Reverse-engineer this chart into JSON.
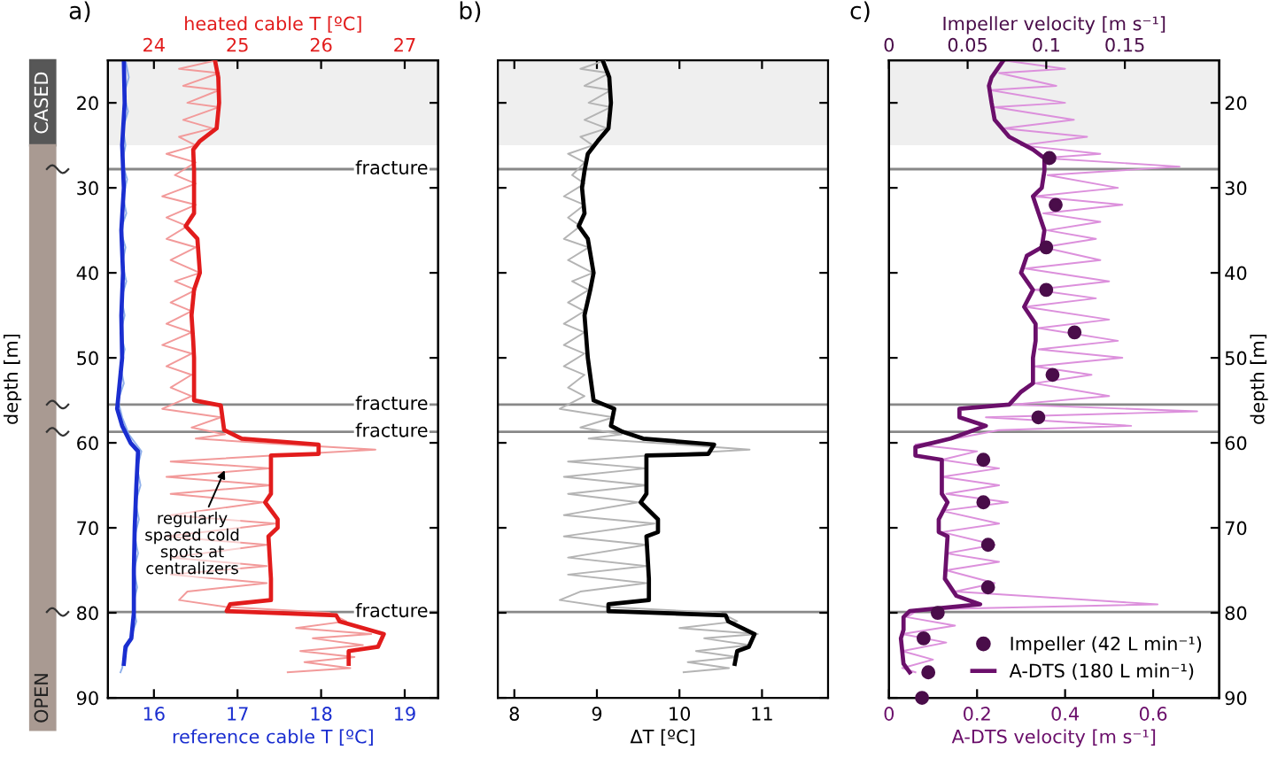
{
  "chart_data": [
    {
      "type": "line",
      "title": "a)",
      "xlabel": "reference cable T [ºC]",
      "x2label": "heated cable T [ºC]",
      "ylabel": "depth [m]",
      "xlim": [
        15.45,
        19.4
      ],
      "xticks": [
        16,
        17,
        18,
        19
      ],
      "x2lim": [
        23.45,
        27.4
      ],
      "x2ticks": [
        24,
        25,
        26,
        27
      ],
      "ylim": [
        90,
        15
      ],
      "yticks": [
        20,
        30,
        40,
        50,
        60,
        70,
        80,
        90
      ],
      "grid": false,
      "bands": [
        {
          "axis": "y",
          "from": 15,
          "to": 25,
          "color": "#efefef"
        }
      ],
      "ref_lines": [
        {
          "axis": "y",
          "value": 27.8,
          "label": "fracture",
          "color": "#888888"
        },
        {
          "axis": "y",
          "value": 55.5,
          "label": "fracture",
          "color": "#888888"
        },
        {
          "axis": "y",
          "value": 58.7,
          "label": "fracture",
          "color": "#888888"
        },
        {
          "axis": "y",
          "value": 79.9,
          "label": "fracture",
          "color": "#888888"
        }
      ],
      "annotations": [
        "CASED",
        "OPEN",
        {
          "text": "regularly\nspaced cold\nspots at\ncentralizers",
          "x": 16.87,
          "y": 62.7
        }
      ],
      "series": [
        {
          "type": "line",
          "color": "#8fb0ea",
          "x": [
            15.66,
            15.7,
            15.64,
            15.69,
            15.63,
            15.66,
            15.62,
            15.68,
            15.63,
            15.67,
            15.6,
            15.66,
            15.62,
            15.67,
            15.61,
            15.65,
            15.6,
            15.65,
            15.6,
            15.64,
            15.57,
            15.62,
            15.7,
            15.85,
            15.8,
            15.84,
            15.78,
            15.82,
            15.77,
            15.81,
            15.76,
            15.8,
            15.75,
            15.79,
            15.72,
            15.65,
            15.62,
            15.6
          ],
          "values": [
            15,
            17,
            19,
            21,
            23,
            25,
            27,
            29,
            31,
            33,
            35,
            37,
            39,
            41,
            43,
            45,
            47,
            49,
            51,
            53,
            55,
            57,
            59,
            61,
            63,
            65,
            67,
            69,
            71,
            73,
            75,
            77,
            79,
            81,
            83,
            85,
            86.5,
            87
          ]
        },
        {
          "type": "line",
          "color": "#1a2ed0",
          "x": [
            15.64,
            15.65,
            15.62,
            15.64,
            15.61,
            15.63,
            15.61,
            15.62,
            15.57,
            15.56,
            15.62,
            15.72,
            15.81,
            15.79,
            15.77,
            15.76,
            15.76,
            15.73,
            15.66,
            15.64
          ],
          "values": [
            15,
            20,
            25,
            30,
            35,
            40,
            45,
            50,
            55,
            56,
            58,
            60,
            61,
            65,
            70,
            75,
            80,
            83,
            84,
            86
          ]
        },
        {
          "type": "line",
          "axis": "x2",
          "color": "#f29a9a",
          "x": [
            24.75,
            24.3,
            24.78,
            24.35,
            24.78,
            24.4,
            24.78,
            24.35,
            24.7,
            24.3,
            24.5,
            24.15,
            24.5,
            24.25,
            24.5,
            24.1,
            24.5,
            24.15,
            24.4,
            24.15,
            24.5,
            24.2,
            24.55,
            24.25,
            24.5,
            24.2,
            24.45,
            24.15,
            24.45,
            24.1,
            24.45,
            24.15,
            24.45,
            24.2,
            24.45,
            24.1,
            24.8,
            24.45,
            24.85,
            24.5,
            25.6,
            26.65,
            25.4,
            24.2,
            25.4,
            24.15,
            25.4,
            24.2,
            25.3,
            24.2,
            25.45,
            24.15,
            25.35,
            24.2,
            25.35,
            24.2,
            25.35,
            24.4,
            24.3,
            24.85,
            26.1,
            26.3,
            25.7,
            26.6,
            25.9,
            26.5,
            25.75,
            26.4,
            25.8,
            26.35,
            25.6
          ],
          "values": [
            15,
            16,
            16.5,
            18,
            18.5,
            20,
            20.5,
            22,
            23,
            24,
            25,
            26,
            27,
            28.5,
            29.5,
            31,
            32,
            33.5,
            34.5,
            36,
            37,
            38.5,
            40,
            41,
            42,
            43.5,
            44.5,
            46,
            47,
            48.5,
            49.5,
            51,
            52,
            53.5,
            54.5,
            56,
            57,
            58.2,
            59,
            59.5,
            60.2,
            60.8,
            61.5,
            62.2,
            63,
            64,
            65,
            66,
            67,
            68.5,
            69.5,
            71,
            72,
            73.5,
            74.5,
            75.5,
            76.5,
            77.5,
            78.5,
            79.3,
            80,
            81,
            81.8,
            82.5,
            83,
            83.8,
            84.5,
            85.2,
            85.8,
            86.5,
            87
          ]
        },
        {
          "type": "line",
          "axis": "x2",
          "color": "#e21c1c",
          "x": [
            24.73,
            24.77,
            24.78,
            24.75,
            24.55,
            24.47,
            24.48,
            24.48,
            24.48,
            24.38,
            24.52,
            24.55,
            24.48,
            24.45,
            24.47,
            24.48,
            24.48,
            24.8,
            24.84,
            25.05,
            25.97,
            25.97,
            25.4,
            25.4,
            25.33,
            25.48,
            25.48,
            25.37,
            25.4,
            25.4,
            24.91,
            24.87,
            26.18,
            26.22,
            26.75,
            26.68,
            26.33,
            26.33
          ],
          "values": [
            15,
            17,
            20,
            23,
            24.5,
            25.5,
            28,
            30,
            33,
            34.5,
            36,
            40,
            42,
            45,
            48,
            50,
            55,
            55.6,
            58.5,
            59.5,
            60.2,
            61.3,
            61.5,
            66,
            67,
            69,
            70,
            71,
            76,
            78.5,
            79,
            79.8,
            80.3,
            81,
            82.5,
            84,
            84.5,
            86
          ]
        }
      ]
    },
    {
      "type": "line",
      "title": "b)",
      "xlabel": "ΔT [ºC]",
      "xlim": [
        7.8,
        11.8
      ],
      "xticks": [
        8,
        9,
        10,
        11
      ],
      "ylim": [
        90,
        15
      ],
      "yticks": [
        20,
        30,
        40,
        50,
        60,
        70,
        80,
        90
      ],
      "tick_labels": "x",
      "grid": false,
      "bands": [
        {
          "axis": "y",
          "from": 15,
          "to": 25,
          "color": "#efefef"
        }
      ],
      "ref_lines": [
        {
          "axis": "y",
          "value": 27.8,
          "color": "#888888"
        },
        {
          "axis": "y",
          "value": 55.5,
          "color": "#888888"
        },
        {
          "axis": "y",
          "value": 58.7,
          "color": "#888888"
        },
        {
          "axis": "y",
          "value": 79.9,
          "color": "#888888"
        }
      ],
      "series": [
        {
          "type": "line",
          "color": "#b4b4b4",
          "x": [
            9.1,
            8.8,
            9.15,
            8.85,
            9.17,
            8.9,
            9.17,
            8.85,
            9.12,
            8.8,
            8.95,
            8.65,
            8.85,
            8.7,
            8.85,
            8.6,
            8.85,
            8.65,
            8.8,
            8.6,
            8.9,
            8.65,
            8.95,
            8.7,
            8.9,
            8.65,
            8.85,
            8.6,
            8.85,
            8.6,
            8.85,
            8.6,
            8.85,
            8.65,
            8.85,
            8.55,
            9.2,
            8.8,
            9.3,
            8.9,
            10.0,
            10.85,
            9.6,
            8.65,
            9.6,
            8.6,
            9.6,
            8.65,
            9.5,
            8.6,
            9.7,
            8.6,
            9.6,
            8.65,
            9.6,
            8.65,
            9.6,
            8.8,
            8.55,
            9.1,
            10.5,
            10.7,
            10.0,
            10.95,
            10.3,
            10.85,
            10.2,
            10.7,
            10.1,
            10.6,
            10.05
          ],
          "values": [
            15,
            16,
            16.5,
            18,
            18.5,
            20,
            20.5,
            22,
            23,
            24,
            25,
            26,
            27,
            28.5,
            29.5,
            31,
            32,
            33.5,
            34.5,
            36,
            37,
            38.5,
            40,
            41,
            42,
            43.5,
            44.5,
            46,
            47,
            48.5,
            49.5,
            51,
            52,
            53.5,
            54.5,
            56,
            57,
            58.2,
            59,
            59.5,
            60.2,
            60.8,
            61.5,
            62.2,
            63,
            64,
            65,
            66,
            67,
            68.5,
            69.5,
            71,
            72,
            73.5,
            74.5,
            75.5,
            76.5,
            77.5,
            78.5,
            79.3,
            80,
            81,
            81.8,
            82.5,
            83,
            83.8,
            84.5,
            85.2,
            85.8,
            86.5,
            87
          ]
        },
        {
          "type": "line",
          "color": "#000000",
          "x": [
            9.07,
            9.15,
            9.17,
            9.14,
            9.01,
            8.89,
            8.85,
            8.82,
            8.85,
            8.78,
            8.89,
            8.96,
            8.92,
            8.85,
            8.89,
            8.96,
            9.21,
            9.17,
            9.31,
            9.56,
            10.42,
            10.35,
            9.6,
            9.6,
            9.53,
            9.74,
            9.74,
            9.6,
            9.63,
            9.63,
            9.14,
            9.14,
            10.56,
            10.59,
            10.91,
            10.84,
            10.7,
            10.67
          ],
          "values": [
            15,
            17,
            20,
            23,
            24.5,
            26,
            28,
            30,
            33,
            34.5,
            36,
            40,
            42,
            45,
            50,
            55,
            56,
            58,
            58.7,
            59.5,
            60.2,
            61.3,
            61.5,
            66,
            67,
            69,
            70.5,
            71,
            76,
            78.5,
            79,
            79.8,
            80.3,
            81,
            82.5,
            84,
            84.5,
            86
          ]
        }
      ]
    },
    {
      "type": "line",
      "xlabel": "A-DTS velocity [m s⁻¹]",
      "x2label": "Impeller velocity [m s⁻¹]",
      "title": "c)",
      "ylabel": "depth [m]",
      "xlim": [
        0,
        0.75
      ],
      "xticks": [
        0,
        0.2,
        0.4,
        0.6
      ],
      "x2lim": [
        0,
        0.21
      ],
      "x2ticks": [
        0,
        0.05,
        0.1,
        0.15
      ],
      "ylim": [
        90,
        15
      ],
      "yticks": [
        20,
        30,
        40,
        50,
        60,
        70,
        80,
        90
      ],
      "grid": false,
      "legend": "bottom right",
      "bands": [
        {
          "axis": "y",
          "from": 15,
          "to": 25,
          "color": "#efefef"
        }
      ],
      "ref_lines": [
        {
          "axis": "y",
          "value": 27.8,
          "color": "#888888"
        },
        {
          "axis": "y",
          "value": 55.5,
          "color": "#888888"
        },
        {
          "axis": "y",
          "value": 58.7,
          "color": "#888888"
        },
        {
          "axis": "y",
          "value": 79.9,
          "color": "#888888"
        }
      ],
      "series": [
        {
          "type": "scatter",
          "axis": "x2",
          "marker": "circle",
          "name": "Impeller (42 L min⁻¹)",
          "color": "#4a0d4a",
          "x": [
            0.102,
            0.106,
            0.1,
            0.1,
            0.118,
            0.104,
            0.095,
            0.06,
            0.06,
            0.063,
            0.063,
            0.031,
            0.022,
            0.025,
            0.021
          ],
          "values": [
            26.5,
            32,
            37,
            42,
            47,
            52,
            57,
            62,
            67,
            72,
            77,
            80,
            83,
            87,
            90
          ]
        },
        {
          "type": "line",
          "color": "#dc90dc",
          "x": [
            0.26,
            0.4,
            0.25,
            0.38,
            0.23,
            0.4,
            0.24,
            0.42,
            0.26,
            0.45,
            0.3,
            0.48,
            0.35,
            0.66,
            0.36,
            0.52,
            0.33,
            0.53,
            0.35,
            0.48,
            0.36,
            0.47,
            0.35,
            0.48,
            0.31,
            0.5,
            0.33,
            0.47,
            0.31,
            0.5,
            0.34,
            0.52,
            0.34,
            0.53,
            0.33,
            0.46,
            0.33,
            0.5,
            0.28,
            0.7,
            0.22,
            0.55,
            0.25,
            0.15,
            0.06,
            0.2,
            0.12,
            0.25,
            0.12,
            0.25,
            0.13,
            0.27,
            0.12,
            0.25,
            0.12,
            0.24,
            0.13,
            0.25,
            0.13,
            0.24,
            0.15,
            0.61,
            0.07,
            0.04,
            0.15,
            0.03,
            0.13,
            0.03,
            0.1,
            0.03,
            0.06
          ],
          "values": [
            15,
            16,
            16.5,
            18,
            18.5,
            20,
            20.5,
            22,
            23,
            24,
            25,
            26,
            26.5,
            27.5,
            28.5,
            30,
            31,
            32,
            33,
            34,
            35,
            36,
            37,
            38.5,
            39.5,
            41,
            42,
            43,
            44,
            45.5,
            46.5,
            48,
            49,
            50,
            51,
            52,
            53,
            54.5,
            55.5,
            56.3,
            57,
            58,
            58.5,
            59.5,
            60.2,
            61,
            62,
            63,
            64,
            65,
            66,
            67,
            68,
            69.5,
            70.5,
            72,
            73,
            74,
            75,
            76.5,
            77.5,
            79,
            79.6,
            80.5,
            81.5,
            82.5,
            83.5,
            84.5,
            85.5,
            86.5,
            87
          ]
        },
        {
          "type": "line",
          "name": "A-DTS (180 L min⁻¹)",
          "color": "#6b0f6b",
          "x": [
            0.26,
            0.233,
            0.227,
            0.233,
            0.24,
            0.273,
            0.327,
            0.353,
            0.353,
            0.347,
            0.327,
            0.34,
            0.353,
            0.347,
            0.313,
            0.3,
            0.327,
            0.307,
            0.333,
            0.333,
            0.327,
            0.327,
            0.3,
            0.273,
            0.16,
            0.16,
            0.22,
            0.14,
            0.06,
            0.06,
            0.12,
            0.12,
            0.133,
            0.113,
            0.113,
            0.133,
            0.127,
            0.153,
            0.207,
            0.047,
            0.033,
            0.033,
            0.027,
            0.033,
            0.047
          ],
          "values": [
            15,
            17,
            18,
            20,
            22,
            24,
            25.5,
            26.5,
            28,
            30,
            31,
            33,
            35,
            37,
            38,
            40,
            42,
            44,
            46,
            48,
            50,
            53,
            54,
            55.5,
            56,
            57,
            58,
            59.5,
            60.5,
            61.5,
            62,
            66,
            67,
            69,
            70.5,
            71,
            76,
            78,
            79,
            79.8,
            80.5,
            82,
            83,
            86,
            87
          ]
        }
      ]
    }
  ]
}
